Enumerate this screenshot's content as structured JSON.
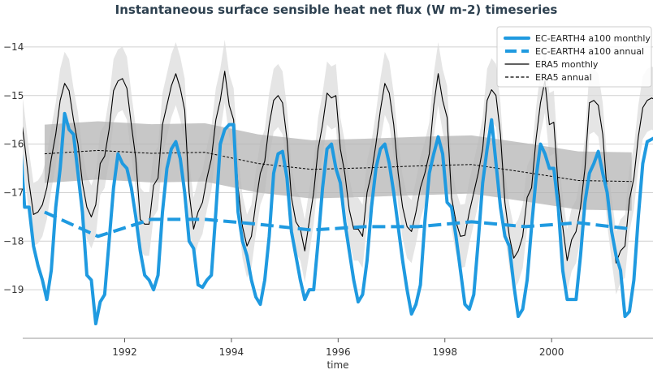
{
  "chart_data": {
    "type": "line",
    "title": "Instantaneous surface sensible heat net flux (W m-2) timeseries",
    "xlabel": "time",
    "ylabel": "",
    "xlim": [
      1990.09,
      2001.9
    ],
    "ylim": [
      -20,
      -13.5
    ],
    "x_ticks": [
      1992,
      1994,
      1996,
      1998,
      2000
    ],
    "x_tick_labels": [
      "1992",
      "1994",
      "1996",
      "1998",
      "2000"
    ],
    "y_ticks": [
      -14,
      -15,
      -16,
      -17,
      -18,
      -19
    ],
    "y_tick_labels": [
      "−14",
      "−15",
      "−16",
      "−17",
      "−18",
      "−19"
    ],
    "grid": true,
    "legend_position": "top-right",
    "start_year": 1990,
    "colors": {
      "model": "#1f9ae0",
      "era5": "#000000",
      "monthly_band": "#dcdcdc",
      "annual_band": "#b4b4b4"
    },
    "series": [
      {
        "name": "EC-EARTH4 a100 monthly",
        "style": "solid-thick",
        "frequency": "monthly",
        "values": [
          -15.9,
          -17.3,
          -17.3,
          -18.1,
          -18.5,
          -18.8,
          -19.2,
          -18.6,
          -17.3,
          -16.5,
          -15.37,
          -15.7,
          -15.8,
          -16.6,
          -17.4,
          -18.7,
          -18.8,
          -19.7,
          -19.25,
          -19.1,
          -18.0,
          -16.9,
          -16.2,
          -16.4,
          -16.5,
          -16.9,
          -17.5,
          -18.2,
          -18.7,
          -18.8,
          -19.0,
          -18.7,
          -17.4,
          -16.5,
          -16.1,
          -15.95,
          -16.3,
          -17.0,
          -18.0,
          -18.15,
          -18.9,
          -18.95,
          -18.8,
          -18.7,
          -17.4,
          -16.0,
          -15.7,
          -15.6,
          -15.6,
          -17.4,
          -18.0,
          -18.3,
          -18.8,
          -19.15,
          -19.3,
          -18.8,
          -17.9,
          -16.6,
          -16.2,
          -16.15,
          -16.7,
          -17.8,
          -18.3,
          -18.8,
          -19.2,
          -19.0,
          -19.0,
          -18.0,
          -16.9,
          -16.1,
          -16.0,
          -16.5,
          -16.8,
          -17.6,
          -18.2,
          -18.8,
          -19.25,
          -19.1,
          -18.4,
          -17.3,
          -16.5,
          -16.1,
          -16.0,
          -16.4,
          -17.0,
          -17.7,
          -18.4,
          -19.0,
          -19.5,
          -19.3,
          -18.9,
          -17.6,
          -16.6,
          -16.2,
          -15.85,
          -16.2,
          -17.2,
          -17.3,
          -17.9,
          -18.6,
          -19.3,
          -19.4,
          -19.1,
          -18.0,
          -16.8,
          -16.1,
          -15.5,
          -16.4,
          -17.3,
          -17.9,
          -18.1,
          -18.9,
          -19.55,
          -19.4,
          -18.8,
          -17.7,
          -16.7,
          -16.0,
          -16.2,
          -16.5,
          -16.5,
          -17.3,
          -18.6,
          -19.2,
          -19.2,
          -19.2,
          -18.3,
          -17.2,
          -16.6,
          -16.4,
          -16.15,
          -16.6,
          -17.0,
          -17.8,
          -18.3,
          -18.6,
          -19.55,
          -19.45,
          -18.8,
          -17.5,
          -16.4,
          -15.95,
          -15.9,
          -15.85
        ]
      },
      {
        "name": "EC-EARTH4 a100 annual",
        "style": "dashed-thick",
        "frequency": "annual",
        "values": [
          -17.4,
          -17.9,
          -17.55,
          -17.55,
          -17.65,
          -17.77,
          -17.7,
          -17.7,
          -17.6,
          -17.7,
          -17.62,
          -17.75
        ]
      },
      {
        "name": "ERA5 monthly",
        "style": "solid-thin",
        "frequency": "monthly",
        "band_halfwidth": 0.65,
        "values": [
          -15.3,
          -16.0,
          -16.8,
          -17.45,
          -17.4,
          -17.25,
          -16.9,
          -16.3,
          -15.8,
          -15.1,
          -14.75,
          -14.9,
          -15.5,
          -16.0,
          -16.8,
          -17.3,
          -17.5,
          -17.25,
          -16.4,
          -16.25,
          -15.7,
          -14.9,
          -14.7,
          -14.65,
          -14.85,
          -15.6,
          -16.3,
          -17.55,
          -17.65,
          -17.65,
          -16.85,
          -16.7,
          -15.6,
          -15.2,
          -14.8,
          -14.55,
          -14.85,
          -15.3,
          -17.0,
          -17.75,
          -17.4,
          -17.2,
          -16.7,
          -16.3,
          -15.5,
          -15.1,
          -14.5,
          -15.2,
          -15.5,
          -16.9,
          -17.7,
          -18.1,
          -17.9,
          -17.2,
          -16.6,
          -16.35,
          -15.6,
          -15.1,
          -15.0,
          -15.15,
          -15.9,
          -17.1,
          -17.6,
          -17.75,
          -18.2,
          -17.6,
          -17.0,
          -16.1,
          -15.6,
          -14.95,
          -15.05,
          -15.0,
          -16.1,
          -16.6,
          -17.35,
          -17.75,
          -17.75,
          -17.9,
          -17.0,
          -16.6,
          -16.0,
          -15.3,
          -14.75,
          -14.95,
          -15.6,
          -16.6,
          -17.3,
          -17.7,
          -17.8,
          -17.4,
          -16.9,
          -16.6,
          -16.2,
          -15.2,
          -14.55,
          -15.1,
          -15.45,
          -17.1,
          -17.6,
          -17.9,
          -17.88,
          -17.4,
          -17.0,
          -16.6,
          -16.1,
          -15.1,
          -14.88,
          -15.0,
          -15.8,
          -17.2,
          -17.9,
          -18.35,
          -18.2,
          -17.9,
          -17.1,
          -16.9,
          -15.9,
          -15.15,
          -14.7,
          -15.6,
          -15.55,
          -16.9,
          -17.7,
          -18.4,
          -17.97,
          -17.8,
          -17.3,
          -16.5,
          -15.15,
          -15.1,
          -15.2,
          -15.8,
          -17.0,
          -17.75,
          -18.45,
          -18.2,
          -18.1,
          -17.15,
          -16.7,
          -15.85,
          -15.25,
          -15.1,
          -15.05,
          -15.1
        ]
      },
      {
        "name": "ERA5 annual",
        "style": "dashed-thin",
        "frequency": "annual",
        "band_halfwidth": 0.6,
        "values": [
          -16.2,
          -16.13,
          -16.19,
          -16.17,
          -16.4,
          -16.52,
          -16.49,
          -16.45,
          -16.42,
          -16.58,
          -16.75,
          -16.77
        ]
      }
    ]
  }
}
